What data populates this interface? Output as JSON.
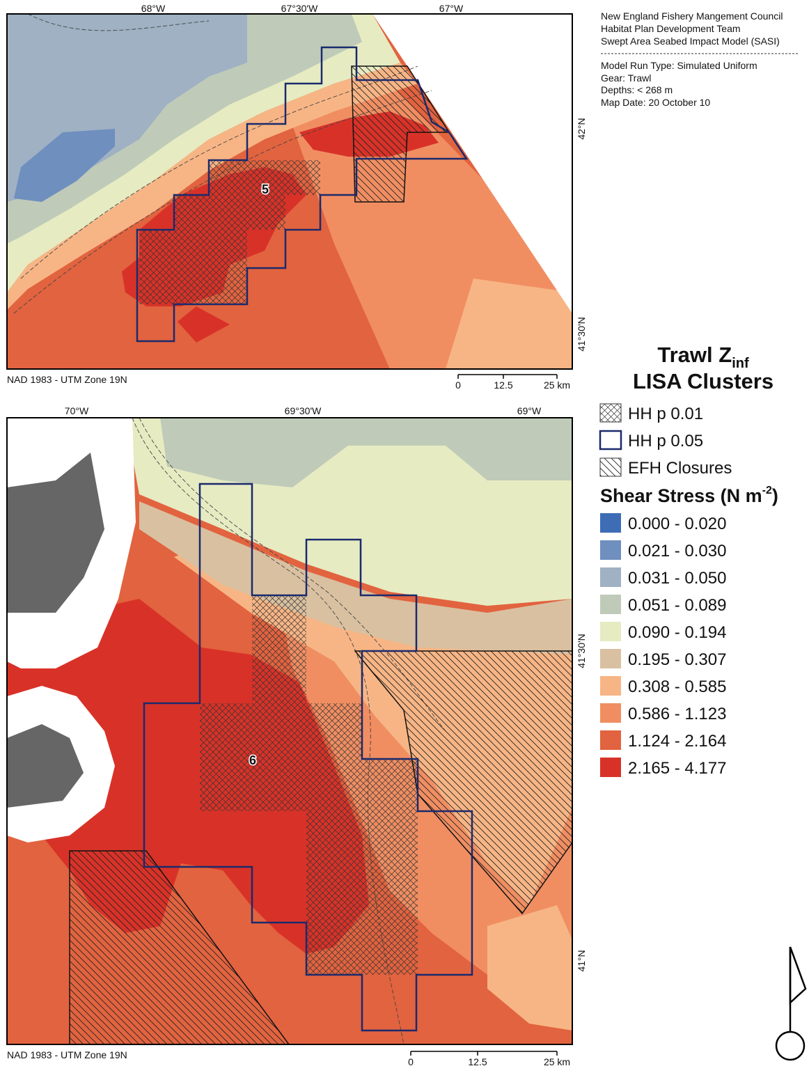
{
  "header": {
    "lines": [
      "New England Fishery Mangement Council",
      "Habitat Plan Development Team",
      "Swept Area Seabed Impact Model (SASI)"
    ],
    "details": [
      "Model Run Type: Simulated Uniform",
      "Gear: Trawl",
      "Depths: < 268 m",
      "Map Date: 20 October 10"
    ]
  },
  "maps": [
    {
      "lon_labels": [
        "68°W",
        "67°30'W",
        "67°W"
      ],
      "lat_labels": [
        "42°N",
        "41°30'N"
      ],
      "projection": "NAD 1983 - UTM Zone 19N",
      "scale": [
        "0",
        "12.5",
        "25 km"
      ],
      "cluster": "5"
    },
    {
      "lon_labels": [
        "70°W",
        "69°30'W",
        "69°W"
      ],
      "lat_labels": [
        "41°30'N",
        "41°N"
      ],
      "projection": "NAD 1983 - UTM Zone 19N",
      "scale": [
        "0",
        "12.5",
        "25 km"
      ],
      "cluster": "6"
    }
  ],
  "legend": {
    "title": "Trawl Z",
    "title_sub": "inf",
    "title2": "LISA Clusters",
    "symbols": [
      "HH p 0.01",
      "HH p 0.05",
      "EFH Closures"
    ],
    "stress_title": "Shear Stress (N m",
    "stress_sup": "-2",
    "stress_close": ")",
    "classes": [
      {
        "label": "0.000 - 0.020",
        "color": "#3e6db5"
      },
      {
        "label": "0.021 - 0.030",
        "color": "#6f8fbf"
      },
      {
        "label": "0.031 - 0.050",
        "color": "#9fb1c3"
      },
      {
        "label": "0.051 - 0.089",
        "color": "#bfcbb8"
      },
      {
        "label": "0.090 - 0.194",
        "color": "#e6ebc2"
      },
      {
        "label": "0.195 - 0.307",
        "color": "#d9c0a0"
      },
      {
        "label": "0.308 - 0.585",
        "color": "#f7b585"
      },
      {
        "label": "0.586 - 1.123",
        "color": "#f08e62"
      },
      {
        "label": "1.124 - 2.164",
        "color": "#e2633f"
      },
      {
        "label": "2.165 - 4.177",
        "color": "#d83228"
      }
    ]
  }
}
